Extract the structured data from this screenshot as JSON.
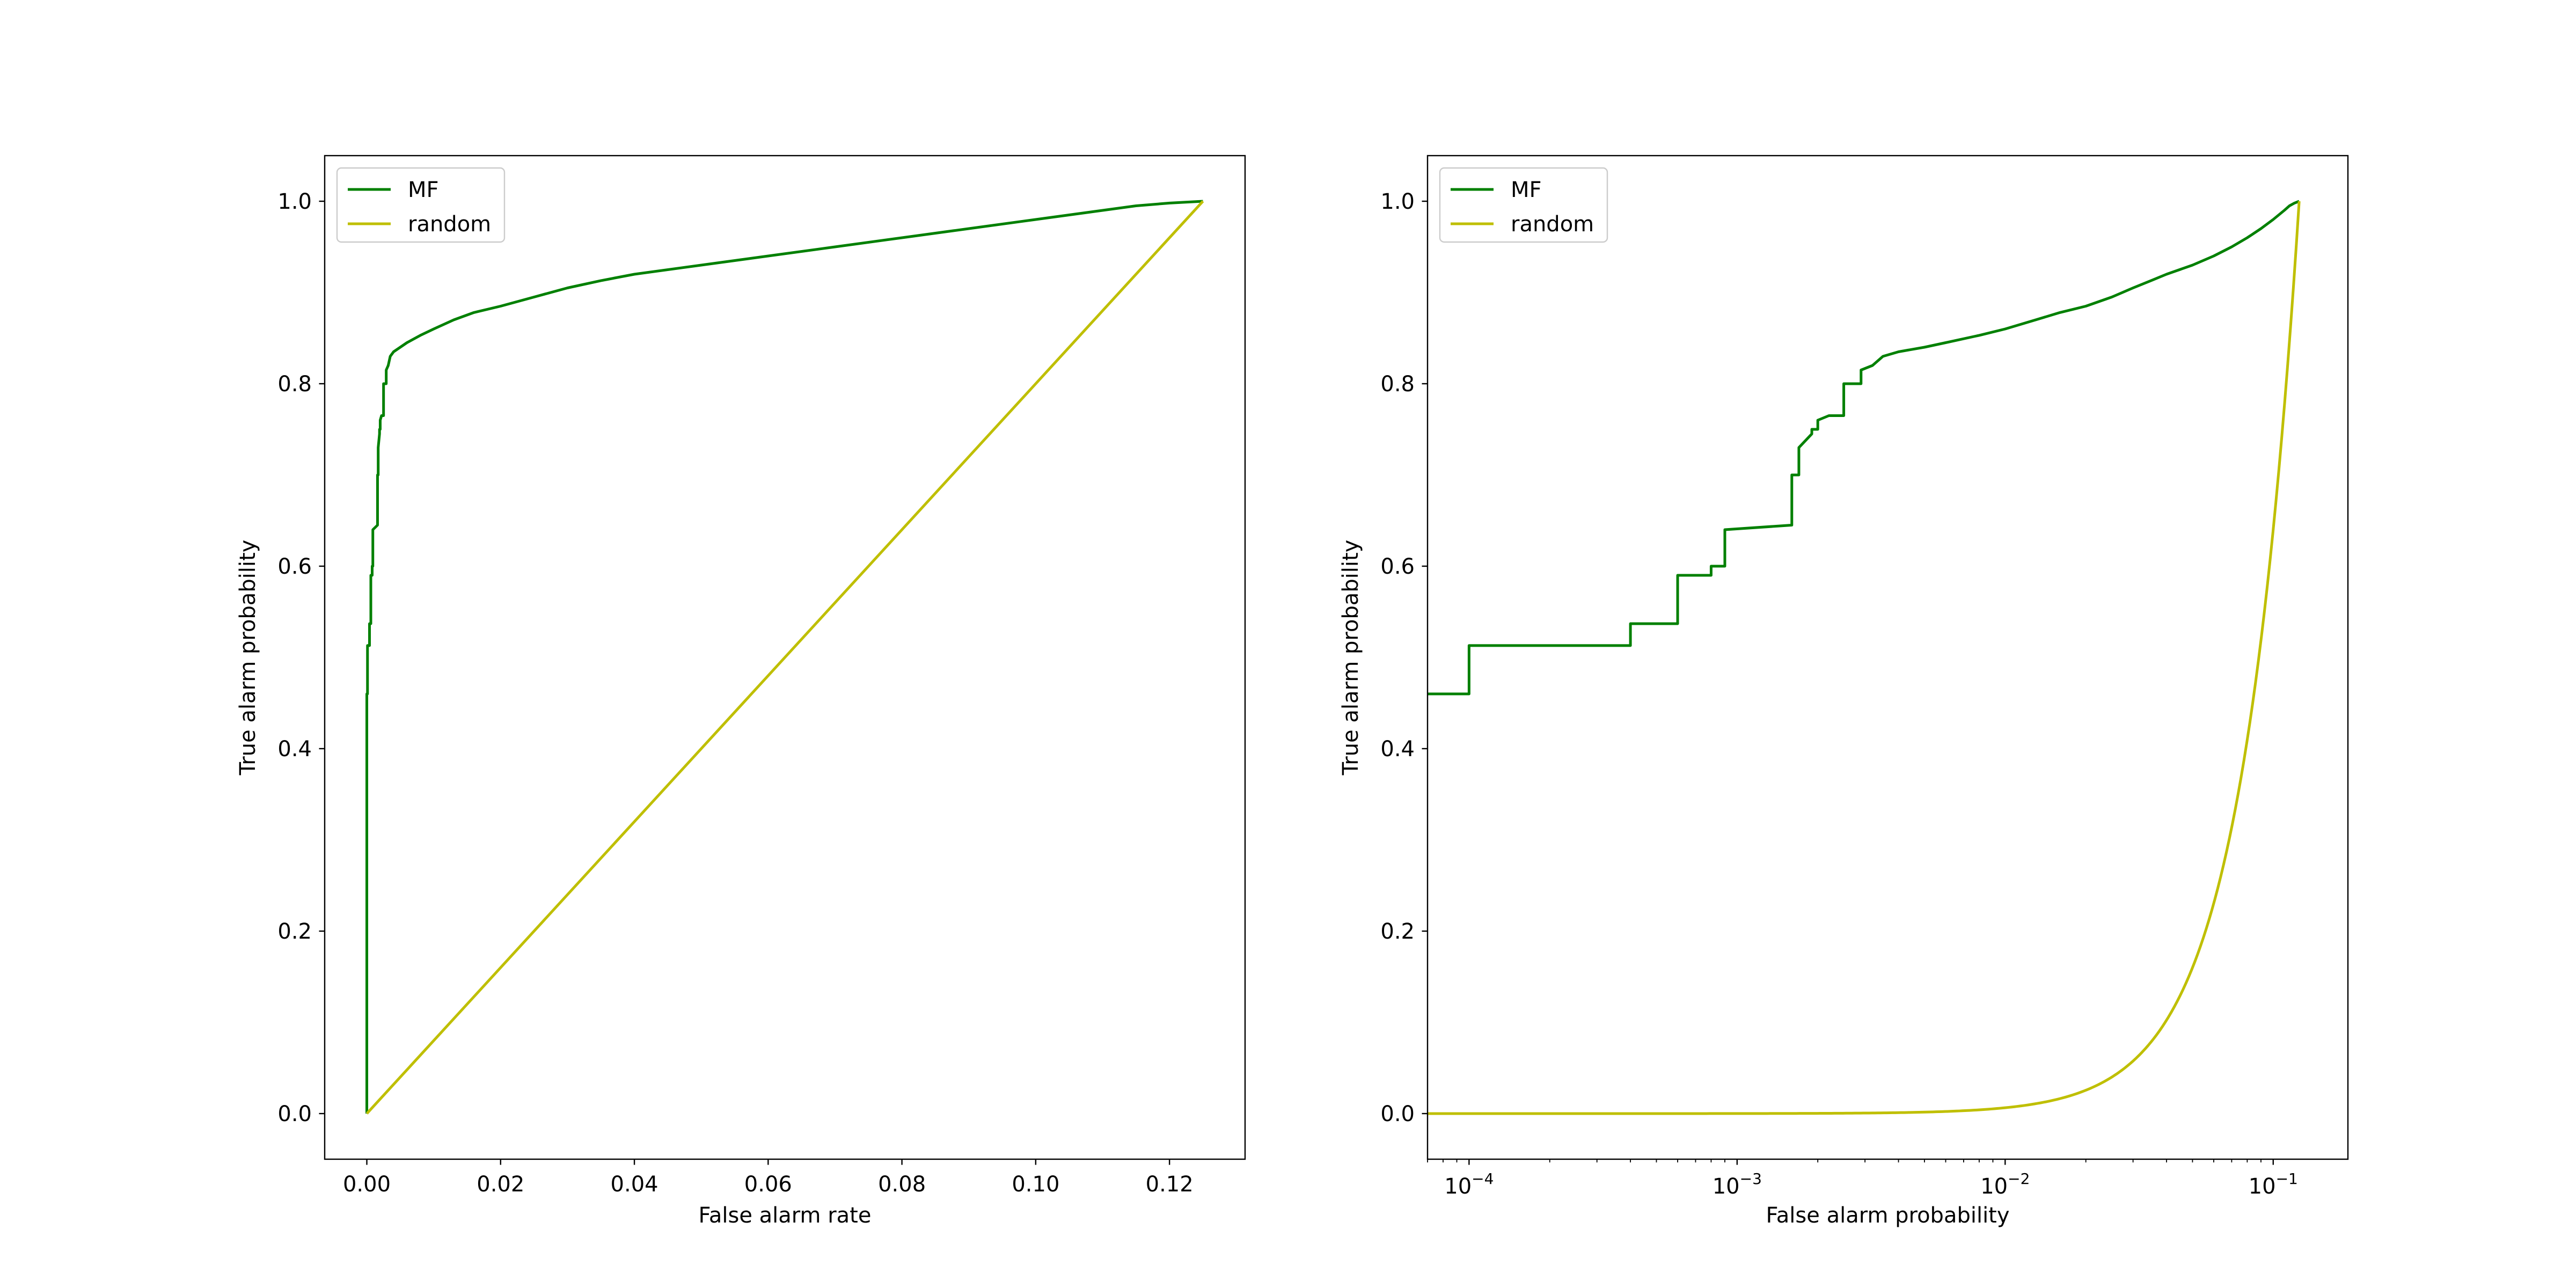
{
  "chart_data": [
    {
      "type": "line",
      "xlabel": "False alarm rate",
      "ylabel": "True alarm probability",
      "xlim": [
        -0.0063,
        0.1313
      ],
      "ylim": [
        -0.05,
        1.05
      ],
      "xscale": "linear",
      "xticks": [
        0.0,
        0.02,
        0.04,
        0.06,
        0.08,
        0.1,
        0.12
      ],
      "xticklabels": [
        "0.00",
        "0.02",
        "0.04",
        "0.06",
        "0.08",
        "0.10",
        "0.12"
      ],
      "yticks": [
        0.0,
        0.2,
        0.4,
        0.6,
        0.8,
        1.0
      ],
      "yticklabels": [
        "0.0",
        "0.2",
        "0.4",
        "0.6",
        "0.8",
        "1.0"
      ],
      "grid": false,
      "legend": "upper-left",
      "series": [
        {
          "name": "MF",
          "color": "#008000",
          "x": [
            0.0,
            0.0,
            0.0001,
            0.0001,
            0.0004,
            0.0004,
            0.0006,
            0.0006,
            0.0008,
            0.0008,
            0.0009,
            0.0009,
            0.0016,
            0.0016,
            0.0017,
            0.0017,
            0.0019,
            0.0019,
            0.002,
            0.002,
            0.0022,
            0.0022,
            0.0025,
            0.0025,
            0.0029,
            0.0029,
            0.0032,
            0.0035,
            0.004,
            0.005,
            0.006,
            0.008,
            0.01,
            0.013,
            0.016,
            0.02,
            0.025,
            0.03,
            0.035,
            0.04,
            0.05,
            0.06,
            0.07,
            0.08,
            0.09,
            0.1,
            0.11,
            0.115,
            0.12,
            0.125
          ],
          "y": [
            0.0,
            0.46,
            0.46,
            0.513,
            0.513,
            0.537,
            0.537,
            0.59,
            0.59,
            0.6,
            0.6,
            0.64,
            0.645,
            0.7,
            0.7,
            0.73,
            0.745,
            0.75,
            0.75,
            0.76,
            0.765,
            0.765,
            0.765,
            0.8,
            0.8,
            0.815,
            0.82,
            0.83,
            0.835,
            0.84,
            0.845,
            0.853,
            0.86,
            0.87,
            0.878,
            0.885,
            0.895,
            0.905,
            0.913,
            0.92,
            0.93,
            0.94,
            0.95,
            0.96,
            0.97,
            0.98,
            0.99,
            0.995,
            0.998,
            1.0
          ]
        },
        {
          "name": "random",
          "color": "#BFBF00",
          "x": [
            0.0,
            0.125
          ],
          "y": [
            0.0,
            1.0
          ]
        }
      ]
    },
    {
      "type": "line",
      "xlabel": "False alarm probability",
      "ylabel": "True alarm probability",
      "xlim": [
        7e-05,
        0.19
      ],
      "ylim": [
        -0.05,
        1.05
      ],
      "xscale": "log",
      "xticks": [
        0.0001,
        0.001,
        0.01,
        0.1
      ],
      "xticklabels": [
        {
          "base": "10",
          "exp": "−4"
        },
        {
          "base": "10",
          "exp": "−3"
        },
        {
          "base": "10",
          "exp": "−2"
        },
        {
          "base": "10",
          "exp": "−1"
        }
      ],
      "yticks": [
        0.0,
        0.2,
        0.4,
        0.6,
        0.8,
        1.0
      ],
      "yticklabels": [
        "0.0",
        "0.2",
        "0.4",
        "0.6",
        "0.8",
        "1.0"
      ],
      "grid": false,
      "legend": "upper-left",
      "series": [
        {
          "name": "MF",
          "color": "#008000",
          "x": [
            7e-05,
            0.0001,
            0.0001,
            0.0004,
            0.0004,
            0.0006,
            0.0006,
            0.0008,
            0.0008,
            0.0009,
            0.0009,
            0.0016,
            0.0016,
            0.0017,
            0.0017,
            0.0019,
            0.0019,
            0.002,
            0.002,
            0.0022,
            0.0022,
            0.0025,
            0.0025,
            0.0029,
            0.0029,
            0.0032,
            0.0035,
            0.004,
            0.005,
            0.006,
            0.008,
            0.01,
            0.013,
            0.016,
            0.02,
            0.025,
            0.03,
            0.035,
            0.04,
            0.05,
            0.06,
            0.07,
            0.08,
            0.09,
            0.1,
            0.11,
            0.115,
            0.12,
            0.125
          ],
          "y": [
            0.46,
            0.46,
            0.513,
            0.513,
            0.537,
            0.537,
            0.59,
            0.59,
            0.6,
            0.6,
            0.64,
            0.645,
            0.7,
            0.7,
            0.73,
            0.745,
            0.75,
            0.75,
            0.76,
            0.765,
            0.765,
            0.765,
            0.8,
            0.8,
            0.815,
            0.82,
            0.83,
            0.835,
            0.84,
            0.845,
            0.853,
            0.86,
            0.87,
            0.878,
            0.885,
            0.895,
            0.905,
            0.913,
            0.92,
            0.93,
            0.94,
            0.95,
            0.96,
            0.97,
            0.98,
            0.99,
            0.995,
            0.998,
            1.0
          ]
        },
        {
          "name": "random",
          "color": "#BFBF00",
          "function": "y = (x / 0.125)^2"
        }
      ]
    }
  ]
}
